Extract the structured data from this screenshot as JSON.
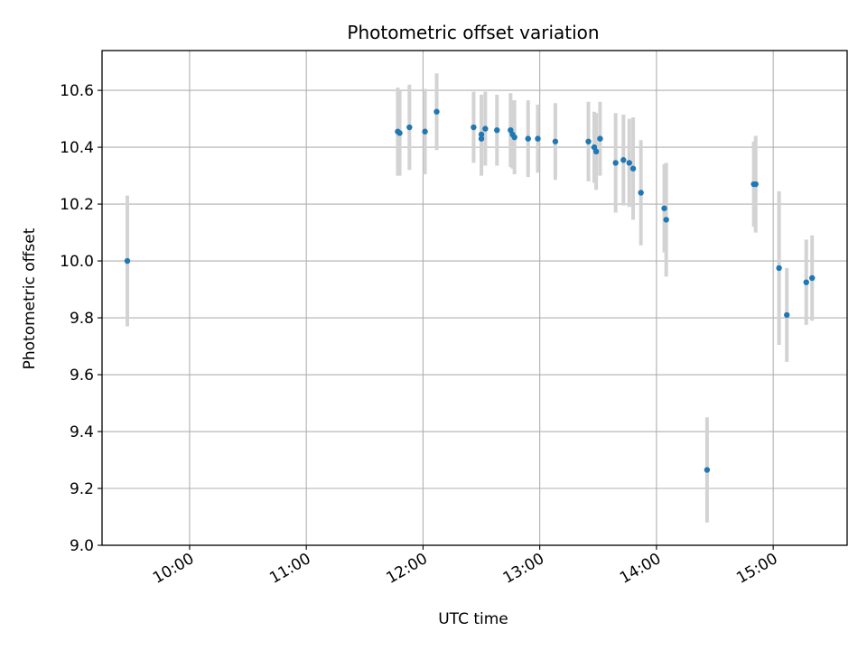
{
  "chart_data": {
    "type": "scatter",
    "title": "Photometric offset variation",
    "xlabel": "UTC time",
    "ylabel": "Photometric offset",
    "grid": true,
    "xlim": [
      "09:15",
      "15:38"
    ],
    "ylim": [
      9.0,
      10.74
    ],
    "x_ticks": [
      "10:00",
      "11:00",
      "12:00",
      "13:00",
      "14:00",
      "15:00"
    ],
    "y_ticks": [
      9.0,
      9.2,
      9.4,
      9.6,
      9.8,
      10.0,
      10.2,
      10.4,
      10.6
    ],
    "y_tick_labels": [
      "9.0",
      "9.2",
      "9.4",
      "9.6",
      "9.8",
      "10.0",
      "10.2",
      "10.4",
      "10.6"
    ],
    "marker_color": "#1f77b4",
    "errorbar_color": "#d3d3d3",
    "points": [
      {
        "x": "09:28",
        "y": 10.0,
        "err": 0.23
      },
      {
        "x": "11:47",
        "y": 10.455,
        "err": 0.155
      },
      {
        "x": "11:48",
        "y": 10.45,
        "err": 0.15
      },
      {
        "x": "11:53",
        "y": 10.47,
        "err": 0.15
      },
      {
        "x": "12:01",
        "y": 10.455,
        "err": 0.15
      },
      {
        "x": "12:07",
        "y": 10.525,
        "err": 0.135
      },
      {
        "x": "12:26",
        "y": 10.47,
        "err": 0.125
      },
      {
        "x": "12:30",
        "y": 10.43,
        "err": 0.13
      },
      {
        "x": "12:30",
        "y": 10.445,
        "err": 0.14
      },
      {
        "x": "12:32",
        "y": 10.465,
        "err": 0.13
      },
      {
        "x": "12:38",
        "y": 10.46,
        "err": 0.125
      },
      {
        "x": "12:45",
        "y": 10.46,
        "err": 0.13
      },
      {
        "x": "12:46",
        "y": 10.445,
        "err": 0.12
      },
      {
        "x": "12:47",
        "y": 10.435,
        "err": 0.13
      },
      {
        "x": "12:54",
        "y": 10.43,
        "err": 0.135
      },
      {
        "x": "12:59",
        "y": 10.43,
        "err": 0.12
      },
      {
        "x": "13:08",
        "y": 10.42,
        "err": 0.135
      },
      {
        "x": "13:25",
        "y": 10.42,
        "err": 0.14
      },
      {
        "x": "13:28",
        "y": 10.4,
        "err": 0.125
      },
      {
        "x": "13:29",
        "y": 10.385,
        "err": 0.135
      },
      {
        "x": "13:31",
        "y": 10.43,
        "err": 0.13
      },
      {
        "x": "13:39",
        "y": 10.345,
        "err": 0.175
      },
      {
        "x": "13:43",
        "y": 10.355,
        "err": 0.16
      },
      {
        "x": "13:46",
        "y": 10.345,
        "err": 0.155
      },
      {
        "x": "13:48",
        "y": 10.325,
        "err": 0.18
      },
      {
        "x": "13:52",
        "y": 10.24,
        "err": 0.185
      },
      {
        "x": "14:04",
        "y": 10.185,
        "err": 0.155
      },
      {
        "x": "14:05",
        "y": 10.145,
        "err": 0.2
      },
      {
        "x": "14:26",
        "y": 9.265,
        "err": 0.185
      },
      {
        "x": "14:50",
        "y": 10.27,
        "err": 0.15
      },
      {
        "x": "14:51",
        "y": 10.27,
        "err": 0.17
      },
      {
        "x": "15:03",
        "y": 9.975,
        "err": 0.27
      },
      {
        "x": "15:07",
        "y": 9.81,
        "err": 0.165
      },
      {
        "x": "15:17",
        "y": 9.925,
        "err": 0.15
      },
      {
        "x": "15:20",
        "y": 9.94,
        "err": 0.15
      }
    ]
  }
}
